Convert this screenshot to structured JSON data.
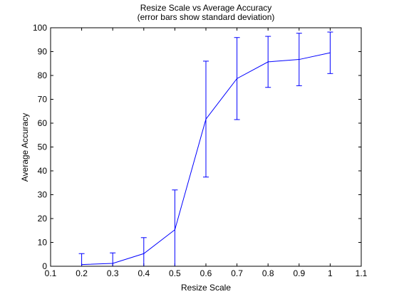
{
  "chart_data": {
    "type": "line",
    "title": "Resize Scale vs Average Accuracy",
    "subtitle": "(error bars show standard deviation)",
    "xlabel": "Resize Scale",
    "ylabel": "Average Accuracy",
    "xlim": [
      0.1,
      1.1
    ],
    "ylim": [
      0,
      100
    ],
    "xticks": [
      0.1,
      0.2,
      0.3,
      0.4,
      0.5,
      0.6,
      0.7,
      0.8,
      0.9,
      1.0,
      1.1
    ],
    "xtick_labels": [
      "0.1",
      "0.2",
      "0.3",
      "0.4",
      "0.5",
      "0.6",
      "0.7",
      "0.8",
      "0.9",
      "1",
      "1.1"
    ],
    "yticks": [
      0,
      10,
      20,
      30,
      40,
      50,
      60,
      70,
      80,
      90,
      100
    ],
    "ytick_labels": [
      "0",
      "10",
      "20",
      "30",
      "40",
      "50",
      "60",
      "70",
      "80",
      "90",
      "100"
    ],
    "grid": false,
    "legend": "none",
    "series": [
      {
        "color": "#0000ff",
        "x": [
          0.2,
          0.3,
          0.4,
          0.5,
          0.6,
          0.7,
          0.8,
          0.9,
          1.0
        ],
        "y": [
          0.7,
          1.2,
          5.3,
          15.3,
          61.7,
          78.7,
          85.7,
          86.7,
          89.5
        ],
        "error": [
          4.6,
          4.4,
          6.7,
          16.7,
          24.3,
          17.2,
          10.7,
          11.0,
          8.7
        ]
      }
    ]
  }
}
